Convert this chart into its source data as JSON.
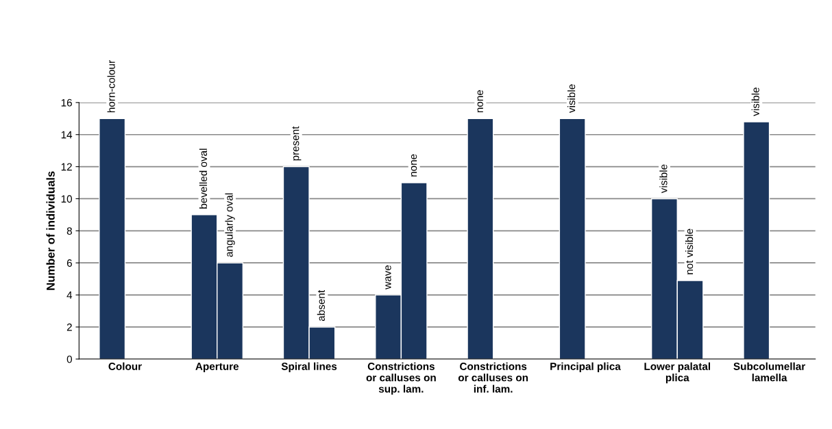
{
  "chart_data": {
    "type": "bar",
    "ylabel": "Number of individuals",
    "categories": [
      "Colour",
      "Aperture",
      "Spiral lines",
      "Constrictions or calluses on sup. lam.",
      "Constrictions or calluses on inf. lam.",
      "Principal plica",
      "Lower palatal plica",
      "Subcolumellar lamella"
    ],
    "series": [
      {
        "color": "#1b365d",
        "values": [
          15,
          9,
          12,
          4,
          15,
          15,
          10,
          14.8
        ],
        "value_labels": [
          "horn-colour",
          "bevelled oval",
          "present",
          "wave",
          "none",
          "visible",
          "visible",
          "visible"
        ]
      },
      {
        "color": "#1b365d",
        "values": [
          null,
          6,
          2,
          11,
          null,
          null,
          4.9,
          null
        ],
        "value_labels": [
          null,
          "angularly oval",
          "absent",
          "none",
          null,
          null,
          "not visible",
          null
        ]
      }
    ],
    "ylim": [
      0,
      16
    ],
    "yticks": [
      0,
      2,
      4,
      6,
      8,
      10,
      12,
      14,
      16
    ],
    "grid": "y"
  }
}
